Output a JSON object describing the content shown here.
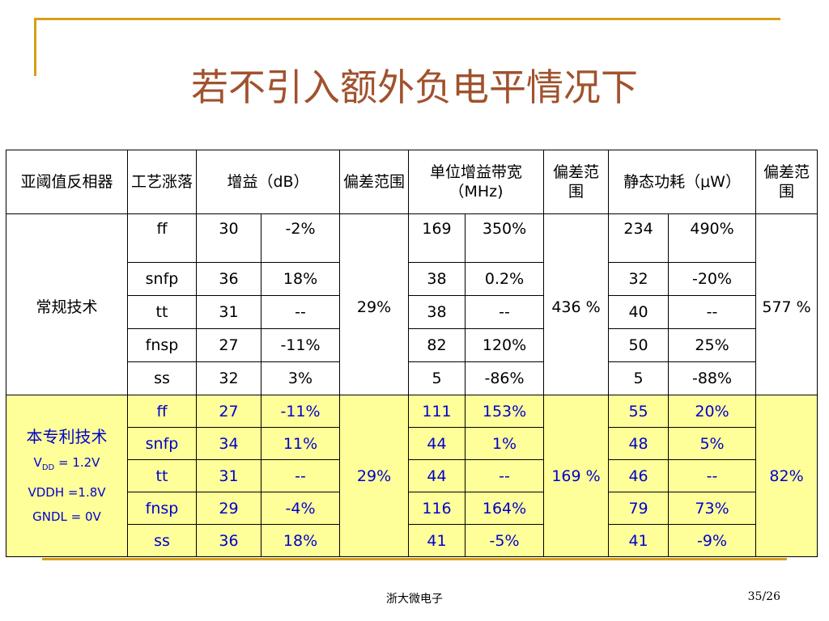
{
  "title": "若不引入额外负电平情况下",
  "headers": {
    "cat": "亚阈值反相器",
    "proc": "工艺涨落",
    "gain": "增益（dB）",
    "dev1": "偏差范围",
    "ugb": "单位增益带宽（MHz)",
    "dev2": "偏差范围",
    "power": "静态功耗（μW）",
    "dev3": "偏差范围"
  },
  "conventional": {
    "label": "常规技术",
    "gain_dev": "29%",
    "ugb_dev": "436 %",
    "power_dev": "577 %",
    "rows": [
      {
        "proc": "ff",
        "gain": "30",
        "gain_pct": "-2%",
        "ugb": "169",
        "ugb_pct": "350%",
        "power": "234",
        "power_pct": "490%"
      },
      {
        "proc": "snfp",
        "gain": "36",
        "gain_pct": "18%",
        "ugb": "38",
        "ugb_pct": "0.2%",
        "power": "32",
        "power_pct": "-20%"
      },
      {
        "proc": "tt",
        "gain": "31",
        "gain_pct": "--",
        "ugb": "38",
        "ugb_pct": "--",
        "power": "40",
        "power_pct": "--"
      },
      {
        "proc": "fnsp",
        "gain": "27",
        "gain_pct": "-11%",
        "ugb": "82",
        "ugb_pct": "120%",
        "power": "50",
        "power_pct": "25%"
      },
      {
        "proc": "ss",
        "gain": "32",
        "gain_pct": "3%",
        "ugb": "5",
        "ugb_pct": "-86%",
        "power": "5",
        "power_pct": "-88%"
      }
    ]
  },
  "patent": {
    "label": "本专利技术",
    "vdd_prefix": "V",
    "vdd_sub": "DD",
    "vdd_value": " = 1.2V",
    "vddh": "VDDH =1.8V",
    "gndl": "GNDL = 0V",
    "gain_dev": "29%",
    "ugb_dev": "169 %",
    "power_dev": "82%",
    "rows": [
      {
        "proc": "ff",
        "gain": "27",
        "gain_pct": "-11%",
        "ugb": "111",
        "ugb_pct": "153%",
        "power": "55",
        "power_pct": "20%"
      },
      {
        "proc": "snfp",
        "gain": "34",
        "gain_pct": "11%",
        "ugb": "44",
        "ugb_pct": "1%",
        "power": "48",
        "power_pct": "5%"
      },
      {
        "proc": "tt",
        "gain": "31",
        "gain_pct": "--",
        "ugb": "44",
        "ugb_pct": "--",
        "power": "46",
        "power_pct": "--"
      },
      {
        "proc": "fnsp",
        "gain": "29",
        "gain_pct": "-4%",
        "ugb": "116",
        "ugb_pct": "164%",
        "power": "79",
        "power_pct": "73%"
      },
      {
        "proc": "ss",
        "gain": "36",
        "gain_pct": "18%",
        "ugb": "41",
        "ugb_pct": "-5%",
        "power": "41",
        "power_pct": "-9%"
      }
    ]
  },
  "footer": {
    "center": "浙大微电子",
    "page": "35/26"
  }
}
